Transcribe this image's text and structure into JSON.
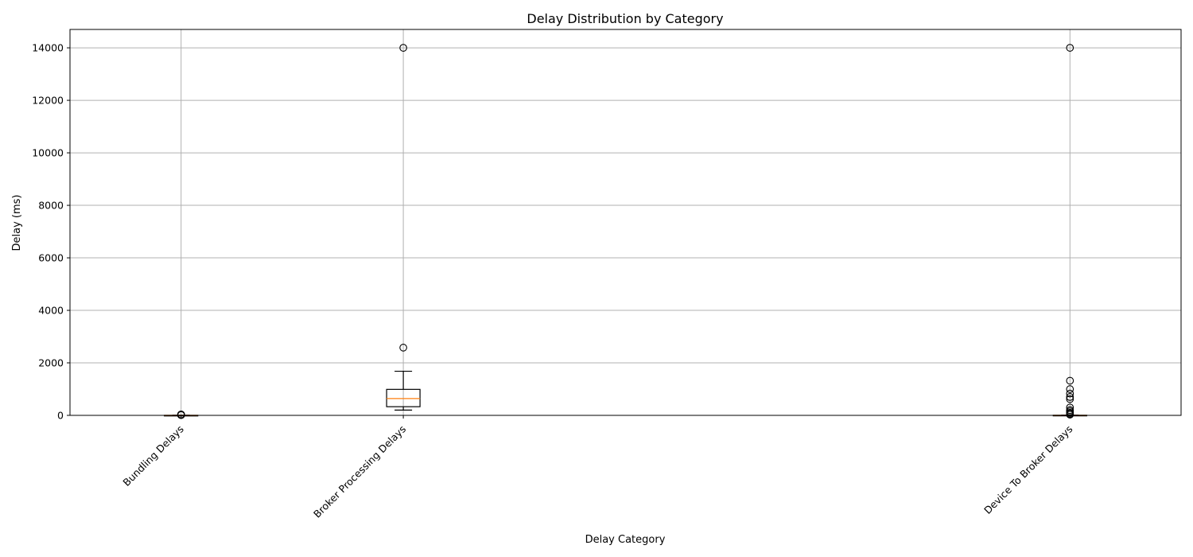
{
  "chart_data": {
    "type": "box",
    "title": "Delay Distribution by Category",
    "xlabel": "Delay Category",
    "ylabel": "Delay (ms)",
    "ylim": [
      0,
      14700
    ],
    "yticks": [
      0,
      2000,
      4000,
      6000,
      8000,
      10000,
      12000,
      14000
    ],
    "grid": true,
    "colors": {
      "box": "#000000",
      "median": "#ff7f0e",
      "grid": "#b0b0b0"
    },
    "categories": [
      {
        "label": "Bundling Delays",
        "x": 1,
        "stats": {
          "whisker_low": 0,
          "q1": 0,
          "median": 0,
          "q3": 2,
          "whisker_high": 4
        },
        "outliers": [
          10,
          16,
          22,
          28,
          35
        ]
      },
      {
        "label": "Broker Processing Delays",
        "x": 2,
        "stats": {
          "whisker_low": 200,
          "q1": 330,
          "median": 640,
          "q3": 990,
          "whisker_high": 1680
        },
        "outliers": [
          2580,
          14000
        ]
      },
      {
        "label": "Device To Broker Delays",
        "x": 5,
        "stats": {
          "whisker_low": 0,
          "q1": 0,
          "median": 0,
          "q3": 5,
          "whisker_high": 10
        },
        "outliers": [
          30,
          60,
          100,
          150,
          200,
          300,
          620,
          700,
          830,
          1000,
          1320,
          14000
        ]
      }
    ]
  }
}
